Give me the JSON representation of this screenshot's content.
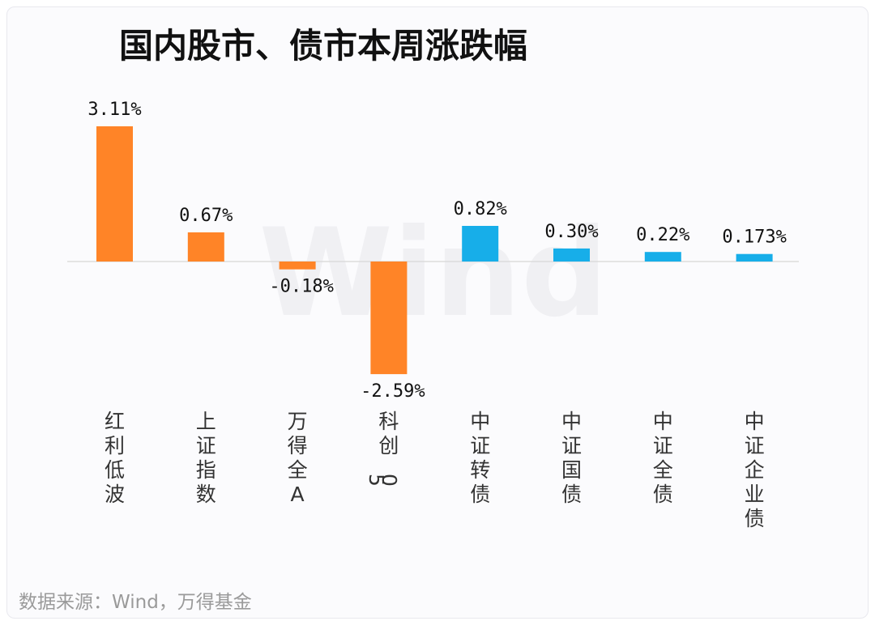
{
  "chart_data": {
    "type": "bar",
    "title": "国内股市、债市本周涨跌幅",
    "categories": [
      "红利低波",
      "上证指数",
      "万得全A",
      "科创50",
      "中证转债",
      "中证国债",
      "中证全债",
      "中证企业债"
    ],
    "values": [
      3.11,
      0.67,
      -0.18,
      -2.59,
      0.82,
      0.3,
      0.22,
      0.173
    ],
    "value_labels": [
      "3.11%",
      "0.67%",
      "-0.18%",
      "-2.59%",
      "0.82%",
      "0.30%",
      "0.22%",
      "0.173%"
    ],
    "bar_colors": [
      "#FF8427",
      "#FF8427",
      "#FF8427",
      "#FF8427",
      "#17AEE9",
      "#17AEE9",
      "#17AEE9",
      "#17AEE9"
    ],
    "ylim": [
      -2.59,
      3.11
    ],
    "xlabel": "",
    "ylabel": "",
    "grid": false,
    "watermark": "Wind"
  },
  "footer": {
    "source": "数据来源：Wind，万得基金"
  }
}
